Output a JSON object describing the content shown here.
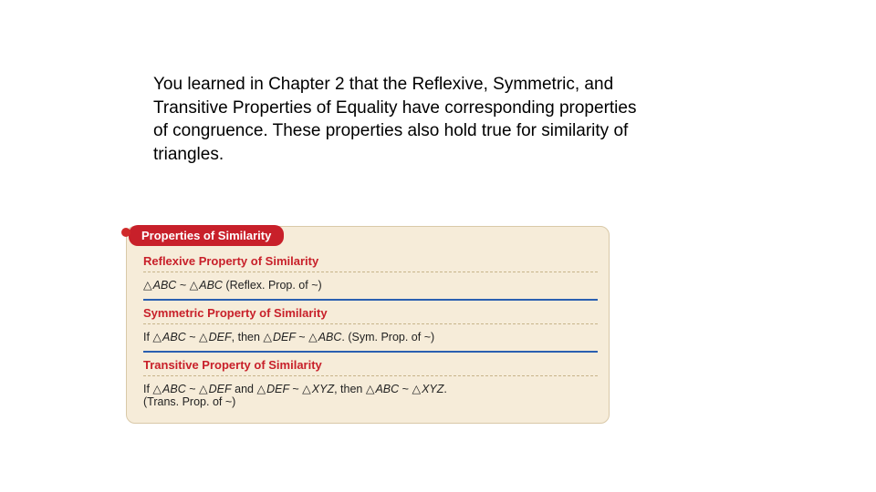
{
  "intro_text": "You learned in Chapter 2 that the Reflexive, Symmetric, and Transitive Properties of Equality have corresponding properties of congruence. These properties also hold true for similarity of triangles.",
  "card": {
    "tab_label": "Properties of Similarity",
    "colors": {
      "tab_bg": "#c8202a",
      "tab_text": "#ffffff",
      "card_bg": "#f6ecd9",
      "card_border": "#d9c9a8",
      "section_title": "#c8202a",
      "rule_blue": "#2a5fb0",
      "rule_dashed": "#c7b48a",
      "body_text": "#222222"
    },
    "sections": [
      {
        "title": "Reflexive Property of Similarity",
        "line_html": "<span class='tri'>△</span>ABC <span class='sim'>~</span> <span class='tri'>△</span>ABC <span class='roman'>(Reflex. Prop. of ~)</span>"
      },
      {
        "title": "Symmetric Property of Similarity",
        "line_html": "<span class='roman'>If </span><span class='tri'>△</span>ABC <span class='sim'>~</span> <span class='tri'>△</span>DEF<span class='roman'>, then </span><span class='tri'>△</span>DEF <span class='sim'>~</span> <span class='tri'>△</span>ABC<span class='roman'>. (Sym. Prop. of ~)</span>"
      },
      {
        "title": "Transitive Property of Similarity",
        "line_html": "<span class='roman'>If </span><span class='tri'>△</span>ABC <span class='sim'>~</span> <span class='tri'>△</span>DEF<span class='roman'> and </span><span class='tri'>△</span>DEF <span class='sim'>~</span> <span class='tri'>△</span>XYZ<span class='roman'>, then </span><span class='tri'>△</span>ABC <span class='sim'>~</span> <span class='tri'>△</span>XYZ<span class='roman'>.</span><br><span class='roman'>(Trans. Prop. of ~)</span>"
      }
    ]
  }
}
